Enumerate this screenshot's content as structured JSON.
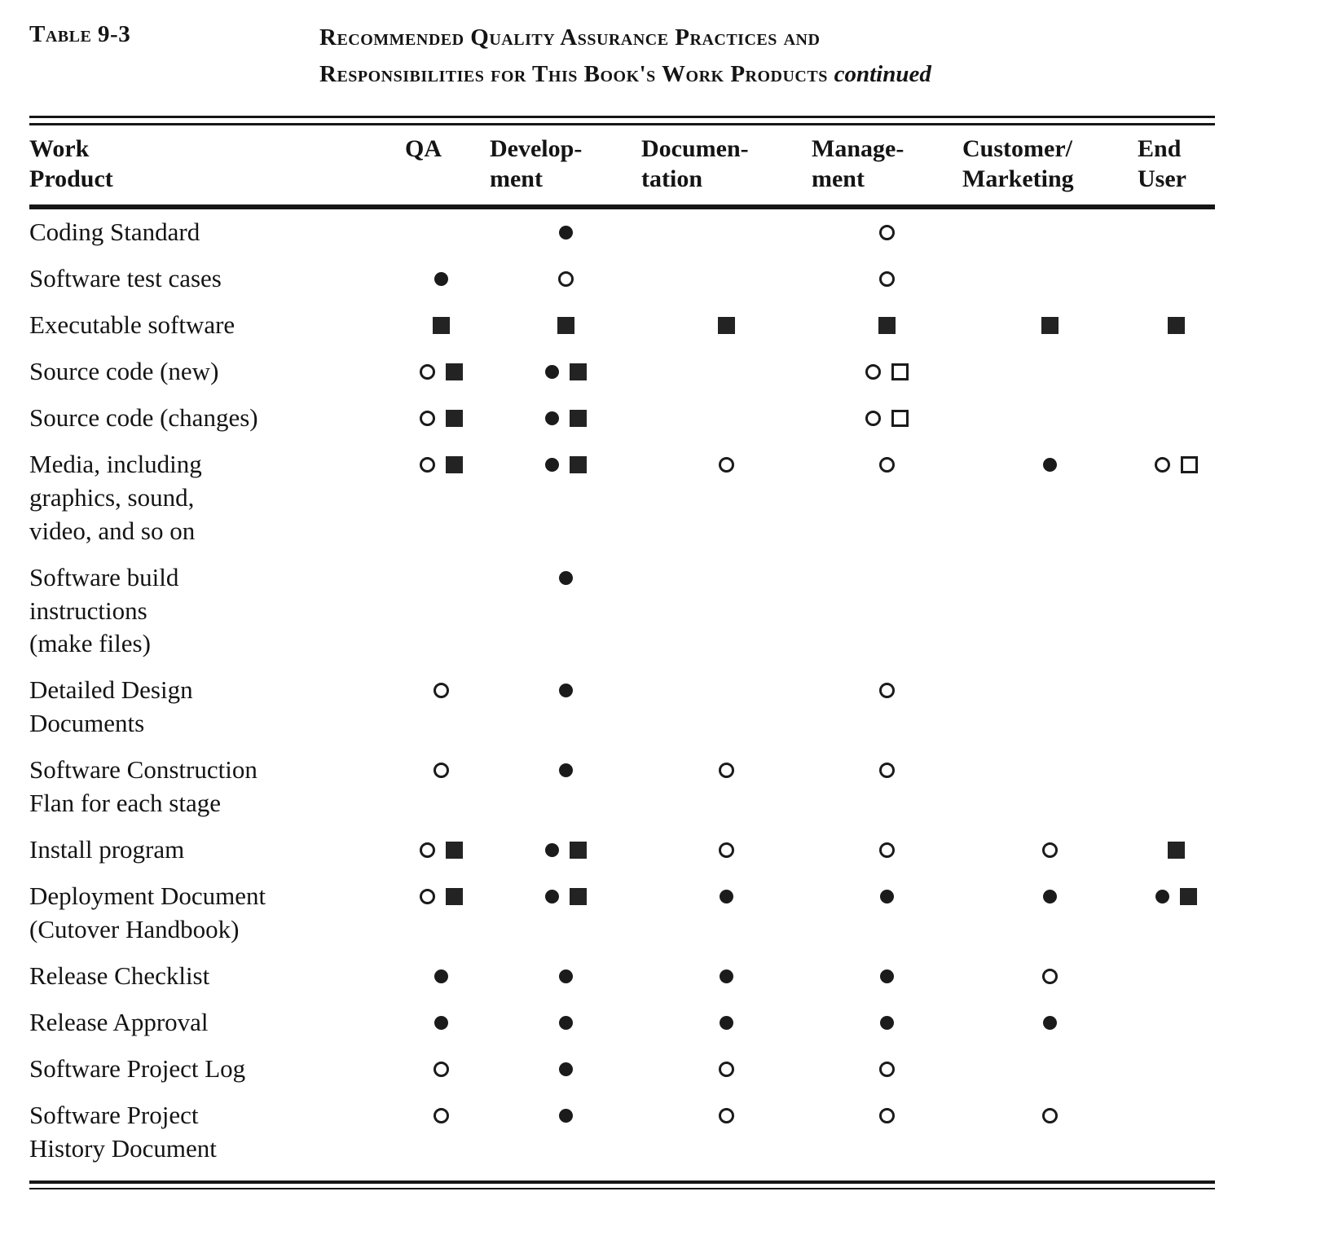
{
  "caption": {
    "label": "Table 9-3",
    "title_line1": "Recommended Quality Assurance Practices and",
    "title_line2": "Responsibilities for This Book's Work Products",
    "continued": "continued"
  },
  "table": {
    "columns": [
      "Work\nProduct",
      "QA",
      "Develop-\nment",
      "Documen-\ntation",
      "Manage-\nment",
      "Customer/\nMarketing",
      "End\nUser"
    ],
    "symbol_names": {
      "fc": "filled-circle",
      "oc": "open-circle",
      "fs": "filled-square",
      "os": "open-square"
    },
    "rows": [
      {
        "product": "Coding Standard",
        "cells": [
          "",
          "fc",
          "",
          "oc",
          "",
          ""
        ]
      },
      {
        "product": "Software test cases",
        "cells": [
          "fc",
          "oc",
          "",
          "oc",
          "",
          ""
        ]
      },
      {
        "product": "Executable software",
        "cells": [
          "fs",
          "fs",
          "fs",
          "fs",
          "fs",
          "fs"
        ]
      },
      {
        "product": "Source code (new)",
        "cells": [
          "oc fs",
          "fc fs",
          "",
          "oc os",
          "",
          ""
        ]
      },
      {
        "product": "Source code (changes)",
        "cells": [
          "oc fs",
          "fc fs",
          "",
          "oc os",
          "",
          ""
        ]
      },
      {
        "product": "Media, including\ngraphics, sound,\nvideo, and so on",
        "cells": [
          "oc fs",
          "fc fs",
          "oc",
          "oc",
          "fc",
          "oc os"
        ]
      },
      {
        "product": "Software build\ninstructions\n(make files)",
        "cells": [
          "",
          "fc",
          "",
          "",
          "",
          ""
        ]
      },
      {
        "product": "Detailed Design\nDocuments",
        "cells": [
          "oc",
          "fc",
          "",
          "oc",
          "",
          ""
        ]
      },
      {
        "product": "Software Construction\nFlan for each stage",
        "cells": [
          "oc",
          "fc",
          "oc",
          "oc",
          "",
          ""
        ]
      },
      {
        "product": "Install program",
        "cells": [
          "oc fs",
          "fc fs",
          "oc",
          "oc",
          "oc",
          "fs"
        ]
      },
      {
        "product": "Deployment Document\n(Cutover Handbook)",
        "cells": [
          "oc fs",
          "fc fs",
          "fc",
          "fc",
          "fc",
          "fc fs"
        ]
      },
      {
        "product": "Release Checklist",
        "cells": [
          "fc",
          "fc",
          "fc",
          "fc",
          "oc",
          ""
        ]
      },
      {
        "product": "Release Approval",
        "cells": [
          "fc",
          "fc",
          "fc",
          "fc",
          "fc",
          ""
        ]
      },
      {
        "product": "Software Project Log",
        "cells": [
          "oc",
          "fc",
          "oc",
          "oc",
          "",
          ""
        ]
      },
      {
        "product": "Software Project\nHistory Document",
        "cells": [
          "oc",
          "fc",
          "oc",
          "oc",
          "oc",
          ""
        ]
      }
    ]
  },
  "colors": {
    "ink": "#161616",
    "paper": "#ffffff"
  }
}
